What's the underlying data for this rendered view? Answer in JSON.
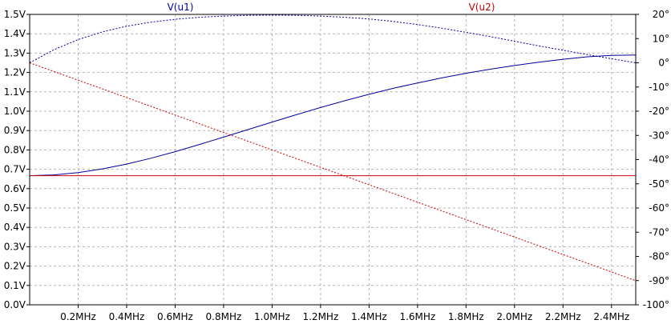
{
  "chart_data": {
    "type": "line",
    "x_unit": "MHz",
    "xlim": [
      0,
      2.5
    ],
    "x_ticks": [
      0.2,
      0.4,
      0.6,
      0.8,
      1.0,
      1.2,
      1.4,
      1.6,
      1.8,
      2.0,
      2.2,
      2.4
    ],
    "x_tick_labels": [
      "0.2MHz",
      "0.4MHz",
      "0.6MHz",
      "0.8MHz",
      "1.0MHz",
      "1.2MHz",
      "1.4MHz",
      "1.6MHz",
      "1.8MHz",
      "2.0MHz",
      "2.2MHz",
      "2.4MHz"
    ],
    "ylim_left": [
      0,
      1.5
    ],
    "y_left_ticks": [
      0,
      0.1,
      0.2,
      0.3,
      0.4,
      0.5,
      0.6,
      0.7,
      0.8,
      0.9,
      1.0,
      1.1,
      1.2,
      1.3,
      1.4,
      1.5
    ],
    "y_left_tick_labels": [
      "0.0V",
      "0.1V",
      "0.2V",
      "0.3V",
      "0.4V",
      "0.5V",
      "0.6V",
      "0.7V",
      "0.8V",
      "0.9V",
      "1.0V",
      "1.1V",
      "1.2V",
      "1.3V",
      "1.4V",
      "1.5V"
    ],
    "ylim_right": [
      -100,
      20
    ],
    "y_right_ticks": [
      20,
      10,
      0,
      -10,
      -20,
      -30,
      -40,
      -50,
      -60,
      -70,
      -80,
      -90,
      -100
    ],
    "y_right_tick_labels": [
      "20°",
      "10°",
      "0°",
      "-10°",
      "-20°",
      "-30°",
      "-40°",
      "-50°",
      "-60°",
      "-70°",
      "-80°",
      "-90°",
      "-100°"
    ],
    "grid": true,
    "grid_color": "#b4b4b4",
    "legend_placement": "top",
    "series": [
      {
        "name": "V(u1)",
        "color": "#0000a0",
        "axis": "left",
        "style": "solid",
        "x": [
          0,
          0.1,
          0.2,
          0.3,
          0.4,
          0.5,
          0.6,
          0.7,
          0.8,
          0.9,
          1.0,
          1.1,
          1.2,
          1.3,
          1.4,
          1.5,
          1.6,
          1.7,
          1.8,
          1.9,
          2.0,
          2.1,
          2.2,
          2.3,
          2.4,
          2.5
        ],
        "y": [
          0.667,
          0.671,
          0.683,
          0.702,
          0.727,
          0.757,
          0.791,
          0.828,
          0.866,
          0.905,
          0.944,
          0.982,
          1.019,
          1.054,
          1.087,
          1.118,
          1.146,
          1.172,
          1.196,
          1.217,
          1.236,
          1.253,
          1.268,
          1.281,
          1.288,
          1.29
        ]
      },
      {
        "name": "V(u1)",
        "color": "#0000a0",
        "axis": "right",
        "style": "dotted",
        "x": [
          0,
          0.1,
          0.2,
          0.3,
          0.4,
          0.5,
          0.6,
          0.7,
          0.8,
          0.9,
          1.0,
          1.1,
          1.2,
          1.3,
          1.4,
          1.5,
          1.6,
          1.7,
          1.8,
          1.9,
          2.0,
          2.1,
          2.2,
          2.3,
          2.4,
          2.5
        ],
        "y": [
          0,
          5.4,
          9.6,
          12.8,
          15.1,
          16.8,
          18.0,
          18.8,
          19.3,
          19.6,
          19.7,
          19.6,
          19.3,
          18.8,
          18.1,
          17.1,
          15.8,
          14.3,
          12.6,
          10.8,
          8.9,
          7.0,
          5.2,
          3.4,
          1.7,
          0
        ]
      },
      {
        "name": "V(u2)",
        "color": "#c80000",
        "axis": "left",
        "style": "solid",
        "x": [
          0,
          2.5
        ],
        "y": [
          0.667,
          0.667
        ]
      },
      {
        "name": "V(u2)",
        "color": "#c80000",
        "axis": "right",
        "style": "dotted",
        "x": [
          0,
          0.5,
          1.0,
          1.5,
          2.0,
          2.5
        ],
        "y": [
          0,
          -18,
          -36,
          -54,
          -72,
          -90
        ]
      }
    ],
    "legend": [
      {
        "label": "V(u1)",
        "color": "#0000a0"
      },
      {
        "label": "V(u2)",
        "color": "#c80000"
      }
    ]
  }
}
